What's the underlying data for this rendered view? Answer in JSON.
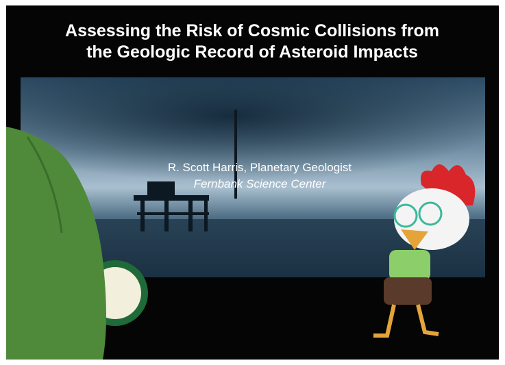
{
  "slide": {
    "title_lines": [
      "Assessing the Risk of Cosmic Collisions from",
      "the Geologic Record of Asteroid Impacts"
    ],
    "speaker": "R. Scott Harris, Planetary Geologist",
    "affiliation": "Fernbank Science Center"
  }
}
